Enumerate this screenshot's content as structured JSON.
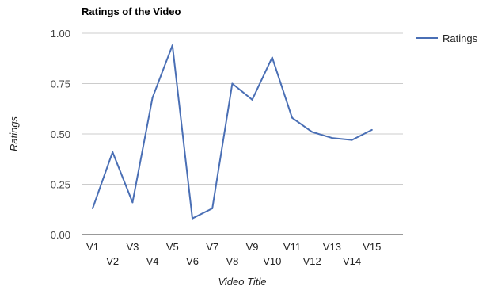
{
  "chart_data": {
    "type": "line",
    "title": "Ratings of the Video",
    "xlabel": "Video Title",
    "ylabel": "Ratings",
    "categories": [
      "V1",
      "V2",
      "V3",
      "V4",
      "V5",
      "V6",
      "V7",
      "V8",
      "V9",
      "V10",
      "V11",
      "V12",
      "V13",
      "V14",
      "V15"
    ],
    "series": [
      {
        "name": "Ratings",
        "values": [
          0.13,
          0.41,
          0.16,
          0.68,
          0.94,
          0.08,
          0.13,
          0.75,
          0.67,
          0.88,
          0.58,
          0.51,
          0.48,
          0.47,
          0.52
        ],
        "color": "#4a6fb5"
      }
    ],
    "ylim": [
      0,
      1
    ],
    "yticks": [
      "0.00",
      "0.25",
      "0.50",
      "0.75",
      "1.00"
    ],
    "grid": true,
    "legend_position": "right"
  }
}
